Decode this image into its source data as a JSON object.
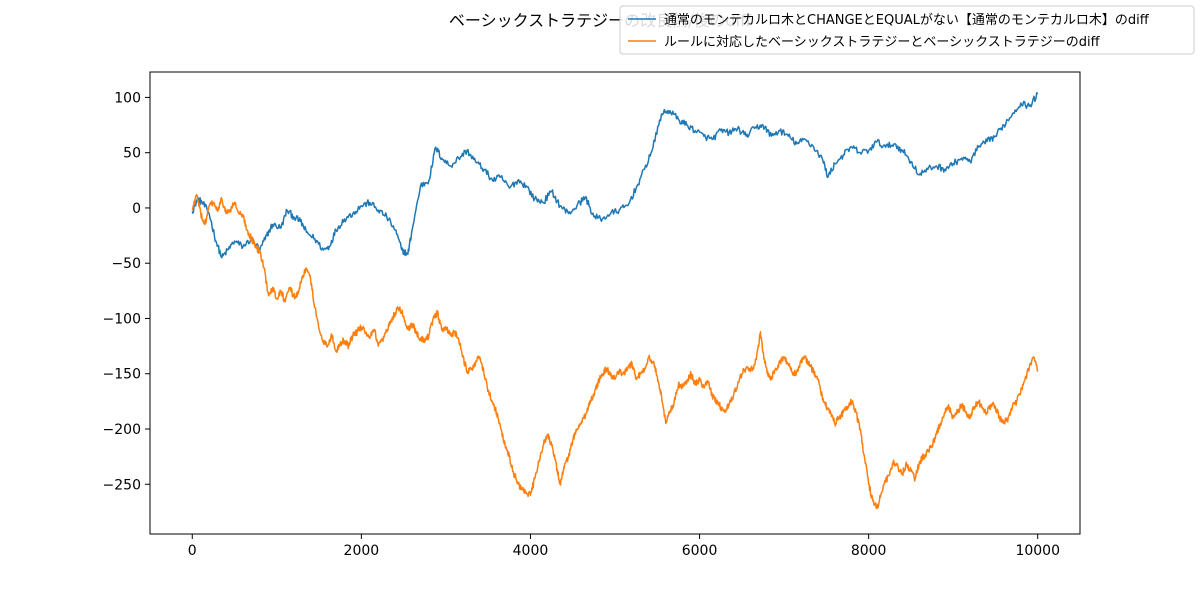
{
  "chart_data": {
    "type": "line",
    "title": "ベーシックストラテジーの改良前/後のdiff",
    "xlabel": "",
    "ylabel": "",
    "xlim": [
      -500,
      10500
    ],
    "ylim": [
      -295,
      123
    ],
    "xticks": [
      0,
      2000,
      4000,
      6000,
      8000,
      10000
    ],
    "yticks": [
      100,
      50,
      0,
      -50,
      -100,
      -150,
      -200,
      -250
    ],
    "xtick_labels": [
      "0",
      "2000",
      "4000",
      "6000",
      "8000",
      "10000"
    ],
    "ytick_labels": [
      "100",
      "50",
      "0",
      "−50",
      "−100",
      "−150",
      "−200",
      "−250"
    ],
    "grid": false,
    "legend_position": "top-right",
    "series": [
      {
        "name": "通常のモンテカルロ木とCHANGEとEQUALがない【通常のモンテカルロ木】のdiff",
        "color": "#1f77b4",
        "points": [
          [
            0,
            -3
          ],
          [
            60,
            8
          ],
          [
            120,
            5
          ],
          [
            200,
            -5
          ],
          [
            280,
            -30
          ],
          [
            350,
            -45
          ],
          [
            420,
            -38
          ],
          [
            500,
            -30
          ],
          [
            600,
            -35
          ],
          [
            700,
            -28
          ],
          [
            800,
            -38
          ],
          [
            880,
            -25
          ],
          [
            950,
            -15
          ],
          [
            1050,
            -18
          ],
          [
            1120,
            -2
          ],
          [
            1200,
            -8
          ],
          [
            1280,
            -12
          ],
          [
            1350,
            -22
          ],
          [
            1450,
            -28
          ],
          [
            1550,
            -38
          ],
          [
            1620,
            -35
          ],
          [
            1700,
            -20
          ],
          [
            1800,
            -10
          ],
          [
            1900,
            -5
          ],
          [
            2000,
            2
          ],
          [
            2100,
            5
          ],
          [
            2200,
            -2
          ],
          [
            2300,
            -8
          ],
          [
            2400,
            -20
          ],
          [
            2480,
            -38
          ],
          [
            2550,
            -42
          ],
          [
            2600,
            -20
          ],
          [
            2700,
            20
          ],
          [
            2800,
            25
          ],
          [
            2880,
            55
          ],
          [
            2950,
            45
          ],
          [
            3050,
            38
          ],
          [
            3150,
            45
          ],
          [
            3250,
            52
          ],
          [
            3350,
            42
          ],
          [
            3450,
            35
          ],
          [
            3550,
            25
          ],
          [
            3650,
            28
          ],
          [
            3750,
            18
          ],
          [
            3850,
            25
          ],
          [
            3950,
            20
          ],
          [
            4050,
            8
          ],
          [
            4150,
            5
          ],
          [
            4250,
            15
          ],
          [
            4350,
            2
          ],
          [
            4450,
            -5
          ],
          [
            4550,
            2
          ],
          [
            4650,
            10
          ],
          [
            4750,
            -8
          ],
          [
            4850,
            -10
          ],
          [
            4950,
            -5
          ],
          [
            5050,
            -2
          ],
          [
            5150,
            2
          ],
          [
            5250,
            18
          ],
          [
            5350,
            35
          ],
          [
            5450,
            55
          ],
          [
            5550,
            85
          ],
          [
            5650,
            88
          ],
          [
            5750,
            80
          ],
          [
            5850,
            75
          ],
          [
            5950,
            70
          ],
          [
            6050,
            65
          ],
          [
            6150,
            62
          ],
          [
            6250,
            70
          ],
          [
            6350,
            68
          ],
          [
            6450,
            72
          ],
          [
            6550,
            65
          ],
          [
            6650,
            72
          ],
          [
            6750,
            75
          ],
          [
            6850,
            65
          ],
          [
            6950,
            70
          ],
          [
            7050,
            65
          ],
          [
            7150,
            58
          ],
          [
            7250,
            62
          ],
          [
            7350,
            55
          ],
          [
            7450,
            45
          ],
          [
            7520,
            28
          ],
          [
            7600,
            40
          ],
          [
            7700,
            48
          ],
          [
            7800,
            55
          ],
          [
            7900,
            50
          ],
          [
            8000,
            52
          ],
          [
            8100,
            60
          ],
          [
            8200,
            55
          ],
          [
            8300,
            58
          ],
          [
            8400,
            52
          ],
          [
            8500,
            42
          ],
          [
            8600,
            30
          ],
          [
            8700,
            35
          ],
          [
            8800,
            38
          ],
          [
            8900,
            35
          ],
          [
            9000,
            40
          ],
          [
            9100,
            45
          ],
          [
            9200,
            42
          ],
          [
            9300,
            55
          ],
          [
            9400,
            60
          ],
          [
            9500,
            65
          ],
          [
            9600,
            75
          ],
          [
            9700,
            85
          ],
          [
            9800,
            95
          ],
          [
            9900,
            92
          ],
          [
            10000,
            103
          ]
        ]
      },
      {
        "name": "ルールに対応したベーシックストラテジーとベーシックストラテジーのdiff",
        "color": "#ff7f0e",
        "points": [
          [
            0,
            -2
          ],
          [
            50,
            12
          ],
          [
            100,
            -5
          ],
          [
            150,
            -15
          ],
          [
            200,
            2
          ],
          [
            250,
            5
          ],
          [
            300,
            -3
          ],
          [
            350,
            8
          ],
          [
            400,
            -5
          ],
          [
            450,
            -2
          ],
          [
            500,
            5
          ],
          [
            550,
            -5
          ],
          [
            600,
            -8
          ],
          [
            650,
            -20
          ],
          [
            700,
            -28
          ],
          [
            750,
            -35
          ],
          [
            800,
            -40
          ],
          [
            850,
            -55
          ],
          [
            900,
            -78
          ],
          [
            950,
            -72
          ],
          [
            1000,
            -82
          ],
          [
            1050,
            -75
          ],
          [
            1100,
            -85
          ],
          [
            1150,
            -72
          ],
          [
            1200,
            -80
          ],
          [
            1250,
            -78
          ],
          [
            1300,
            -62
          ],
          [
            1350,
            -55
          ],
          [
            1400,
            -65
          ],
          [
            1450,
            -90
          ],
          [
            1500,
            -110
          ],
          [
            1550,
            -120
          ],
          [
            1600,
            -125
          ],
          [
            1650,
            -115
          ],
          [
            1700,
            -130
          ],
          [
            1750,
            -122
          ],
          [
            1800,
            -120
          ],
          [
            1850,
            -125
          ],
          [
            1900,
            -115
          ],
          [
            1950,
            -112
          ],
          [
            2000,
            -108
          ],
          [
            2100,
            -118
          ],
          [
            2150,
            -110
          ],
          [
            2200,
            -125
          ],
          [
            2250,
            -120
          ],
          [
            2300,
            -112
          ],
          [
            2350,
            -102
          ],
          [
            2400,
            -95
          ],
          [
            2450,
            -90
          ],
          [
            2500,
            -98
          ],
          [
            2550,
            -110
          ],
          [
            2600,
            -105
          ],
          [
            2650,
            -112
          ],
          [
            2700,
            -118
          ],
          [
            2750,
            -120
          ],
          [
            2800,
            -115
          ],
          [
            2850,
            -100
          ],
          [
            2900,
            -95
          ],
          [
            2950,
            -110
          ],
          [
            3000,
            -108
          ],
          [
            3050,
            -115
          ],
          [
            3100,
            -112
          ],
          [
            3150,
            -118
          ],
          [
            3200,
            -135
          ],
          [
            3250,
            -148
          ],
          [
            3300,
            -145
          ],
          [
            3350,
            -140
          ],
          [
            3400,
            -135
          ],
          [
            3450,
            -150
          ],
          [
            3500,
            -165
          ],
          [
            3550,
            -175
          ],
          [
            3600,
            -185
          ],
          [
            3650,
            -200
          ],
          [
            3700,
            -215
          ],
          [
            3750,
            -225
          ],
          [
            3800,
            -240
          ],
          [
            3850,
            -248
          ],
          [
            3900,
            -255
          ],
          [
            3950,
            -258
          ],
          [
            4000,
            -260
          ],
          [
            4050,
            -245
          ],
          [
            4100,
            -230
          ],
          [
            4150,
            -215
          ],
          [
            4200,
            -205
          ],
          [
            4250,
            -215
          ],
          [
            4300,
            -230
          ],
          [
            4350,
            -250
          ],
          [
            4400,
            -235
          ],
          [
            4450,
            -225
          ],
          [
            4500,
            -210
          ],
          [
            4550,
            -200
          ],
          [
            4600,
            -195
          ],
          [
            4650,
            -188
          ],
          [
            4700,
            -175
          ],
          [
            4750,
            -170
          ],
          [
            4800,
            -158
          ],
          [
            4850,
            -150
          ],
          [
            4900,
            -145
          ],
          [
            4950,
            -152
          ],
          [
            5000,
            -155
          ],
          [
            5050,
            -148
          ],
          [
            5100,
            -150
          ],
          [
            5150,
            -145
          ],
          [
            5200,
            -140
          ],
          [
            5250,
            -155
          ],
          [
            5300,
            -150
          ],
          [
            5350,
            -145
          ],
          [
            5400,
            -135
          ],
          [
            5450,
            -140
          ],
          [
            5500,
            -152
          ],
          [
            5550,
            -170
          ],
          [
            5600,
            -195
          ],
          [
            5650,
            -185
          ],
          [
            5700,
            -175
          ],
          [
            5750,
            -160
          ],
          [
            5800,
            -162
          ],
          [
            5850,
            -158
          ],
          [
            5900,
            -150
          ],
          [
            5950,
            -160
          ],
          [
            6000,
            -155
          ],
          [
            6050,
            -162
          ],
          [
            6100,
            -158
          ],
          [
            6150,
            -170
          ],
          [
            6200,
            -175
          ],
          [
            6250,
            -180
          ],
          [
            6300,
            -185
          ],
          [
            6350,
            -178
          ],
          [
            6400,
            -170
          ],
          [
            6450,
            -160
          ],
          [
            6500,
            -150
          ],
          [
            6550,
            -145
          ],
          [
            6600,
            -148
          ],
          [
            6650,
            -142
          ],
          [
            6700,
            -125
          ],
          [
            6720,
            -112
          ],
          [
            6750,
            -130
          ],
          [
            6800,
            -150
          ],
          [
            6850,
            -155
          ],
          [
            6900,
            -145
          ],
          [
            6950,
            -140
          ],
          [
            7000,
            -135
          ],
          [
            7050,
            -142
          ],
          [
            7100,
            -150
          ],
          [
            7150,
            -148
          ],
          [
            7200,
            -140
          ],
          [
            7250,
            -135
          ],
          [
            7300,
            -142
          ],
          [
            7350,
            -148
          ],
          [
            7400,
            -155
          ],
          [
            7450,
            -170
          ],
          [
            7500,
            -180
          ],
          [
            7550,
            -185
          ],
          [
            7600,
            -195
          ],
          [
            7650,
            -190
          ],
          [
            7700,
            -185
          ],
          [
            7750,
            -180
          ],
          [
            7800,
            -175
          ],
          [
            7850,
            -185
          ],
          [
            7900,
            -200
          ],
          [
            7950,
            -225
          ],
          [
            8000,
            -250
          ],
          [
            8050,
            -265
          ],
          [
            8100,
            -272
          ],
          [
            8150,
            -258
          ],
          [
            8200,
            -248
          ],
          [
            8250,
            -240
          ],
          [
            8300,
            -230
          ],
          [
            8350,
            -235
          ],
          [
            8400,
            -240
          ],
          [
            8450,
            -232
          ],
          [
            8500,
            -238
          ],
          [
            8550,
            -245
          ],
          [
            8600,
            -230
          ],
          [
            8650,
            -225
          ],
          [
            8700,
            -220
          ],
          [
            8750,
            -215
          ],
          [
            8800,
            -205
          ],
          [
            8850,
            -195
          ],
          [
            8900,
            -185
          ],
          [
            8950,
            -180
          ],
          [
            9000,
            -190
          ],
          [
            9050,
            -185
          ],
          [
            9100,
            -178
          ],
          [
            9150,
            -185
          ],
          [
            9200,
            -190
          ],
          [
            9250,
            -180
          ],
          [
            9300,
            -175
          ],
          [
            9350,
            -182
          ],
          [
            9400,
            -185
          ],
          [
            9450,
            -178
          ],
          [
            9500,
            -180
          ],
          [
            9550,
            -190
          ],
          [
            9600,
            -195
          ],
          [
            9650,
            -190
          ],
          [
            9700,
            -180
          ],
          [
            9750,
            -175
          ],
          [
            9800,
            -165
          ],
          [
            9850,
            -155
          ],
          [
            9900,
            -145
          ],
          [
            9950,
            -135
          ],
          [
            10000,
            -148
          ]
        ]
      }
    ]
  }
}
